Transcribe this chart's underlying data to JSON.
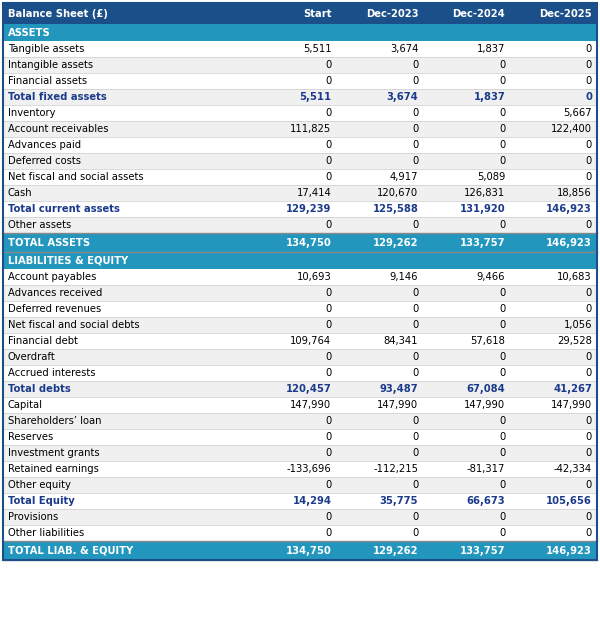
{
  "columns": [
    "Balance Sheet (£)",
    "Start",
    "Dec-2023",
    "Dec-2024",
    "Dec-2025"
  ],
  "header_bg": "#1b4f8a",
  "header_text": "#ffffff",
  "section_bg": "#2396be",
  "section_text": "#ffffff",
  "total_bg": "#2396be",
  "total_text": "#ffffff",
  "bold_text_color": "#1a3a8c",
  "normal_text_color": "#000000",
  "row_bg_even": "#ffffff",
  "row_bg_odd": "#f0f0f0",
  "border_color": "#cccccc",
  "rows": [
    {
      "label": "ASSETS",
      "values": [
        "",
        "",
        "",
        ""
      ],
      "type": "section"
    },
    {
      "label": "Tangible assets",
      "values": [
        "5,511",
        "3,674",
        "1,837",
        "0"
      ],
      "type": "normal"
    },
    {
      "label": "Intangible assets",
      "values": [
        "0",
        "0",
        "0",
        "0"
      ],
      "type": "normal"
    },
    {
      "label": "Financial assets",
      "values": [
        "0",
        "0",
        "0",
        "0"
      ],
      "type": "normal"
    },
    {
      "label": "Total fixed assets",
      "values": [
        "5,511",
        "3,674",
        "1,837",
        "0"
      ],
      "type": "bold"
    },
    {
      "label": "Inventory",
      "values": [
        "0",
        "0",
        "0",
        "5,667"
      ],
      "type": "normal"
    },
    {
      "label": "Account receivables",
      "values": [
        "111,825",
        "0",
        "0",
        "122,400"
      ],
      "type": "normal"
    },
    {
      "label": "Advances paid",
      "values": [
        "0",
        "0",
        "0",
        "0"
      ],
      "type": "normal"
    },
    {
      "label": "Deferred costs",
      "values": [
        "0",
        "0",
        "0",
        "0"
      ],
      "type": "normal"
    },
    {
      "label": "Net fiscal and social assets",
      "values": [
        "0",
        "4,917",
        "5,089",
        "0"
      ],
      "type": "normal"
    },
    {
      "label": "Cash",
      "values": [
        "17,414",
        "120,670",
        "126,831",
        "18,856"
      ],
      "type": "normal"
    },
    {
      "label": "Total current assets",
      "values": [
        "129,239",
        "125,588",
        "131,920",
        "146,923"
      ],
      "type": "bold"
    },
    {
      "label": "Other assets",
      "values": [
        "0",
        "0",
        "0",
        "0"
      ],
      "type": "normal"
    },
    {
      "label": "TOTAL ASSETS",
      "values": [
        "134,750",
        "129,262",
        "133,757",
        "146,923"
      ],
      "type": "total"
    },
    {
      "label": "LIABILITIES & EQUITY",
      "values": [
        "",
        "",
        "",
        ""
      ],
      "type": "section"
    },
    {
      "label": "Account payables",
      "values": [
        "10,693",
        "9,146",
        "9,466",
        "10,683"
      ],
      "type": "normal"
    },
    {
      "label": "Advances received",
      "values": [
        "0",
        "0",
        "0",
        "0"
      ],
      "type": "normal"
    },
    {
      "label": "Deferred revenues",
      "values": [
        "0",
        "0",
        "0",
        "0"
      ],
      "type": "normal"
    },
    {
      "label": "Net fiscal and social debts",
      "values": [
        "0",
        "0",
        "0",
        "1,056"
      ],
      "type": "normal"
    },
    {
      "label": "Financial debt",
      "values": [
        "109,764",
        "84,341",
        "57,618",
        "29,528"
      ],
      "type": "normal"
    },
    {
      "label": "Overdraft",
      "values": [
        "0",
        "0",
        "0",
        "0"
      ],
      "type": "normal"
    },
    {
      "label": "Accrued interests",
      "values": [
        "0",
        "0",
        "0",
        "0"
      ],
      "type": "normal"
    },
    {
      "label": "Total debts",
      "values": [
        "120,457",
        "93,487",
        "67,084",
        "41,267"
      ],
      "type": "bold"
    },
    {
      "label": "Capital",
      "values": [
        "147,990",
        "147,990",
        "147,990",
        "147,990"
      ],
      "type": "normal"
    },
    {
      "label": "Shareholders’ loan",
      "values": [
        "0",
        "0",
        "0",
        "0"
      ],
      "type": "normal"
    },
    {
      "label": "Reserves",
      "values": [
        "0",
        "0",
        "0",
        "0"
      ],
      "type": "normal"
    },
    {
      "label": "Investment grants",
      "values": [
        "0",
        "0",
        "0",
        "0"
      ],
      "type": "normal"
    },
    {
      "label": "Retained earnings",
      "values": [
        "-133,696",
        "-112,215",
        "-81,317",
        "-42,334"
      ],
      "type": "normal"
    },
    {
      "label": "Other equity",
      "values": [
        "0",
        "0",
        "0",
        "0"
      ],
      "type": "normal"
    },
    {
      "label": "Total Equity",
      "values": [
        "14,294",
        "35,775",
        "66,673",
        "105,656"
      ],
      "type": "bold"
    },
    {
      "label": "Provisions",
      "values": [
        "0",
        "0",
        "0",
        "0"
      ],
      "type": "normal"
    },
    {
      "label": "Other liabilities",
      "values": [
        "0",
        "0",
        "0",
        "0"
      ],
      "type": "normal"
    },
    {
      "label": "TOTAL LIAB. & EQUITY",
      "values": [
        "134,750",
        "129,262",
        "133,757",
        "146,923"
      ],
      "type": "total"
    }
  ]
}
